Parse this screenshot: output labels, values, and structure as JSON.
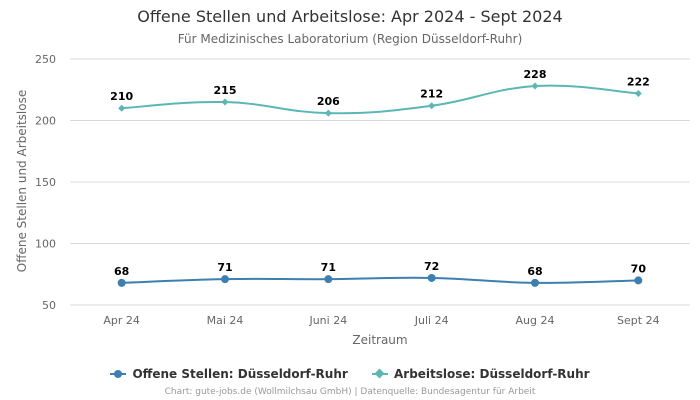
{
  "title": "Offene Stellen und Arbeitslose: Apr 2024 - Sept 2024",
  "subtitle": "Für Medizinisches Laboratorium (Region Düsseldorf-Ruhr)",
  "credits": "Chart: gute-jobs.de (Wollmilchsau GmbH) | Datenquelle: Bundesagentur für Arbeit",
  "chart_data": {
    "type": "line",
    "title": "Offene Stellen und Arbeitslose: Apr 2024 - Sept 2024",
    "subtitle": "Für Medizinisches Laboratorium (Region Düsseldorf-Ruhr)",
    "xlabel": "Zeitraum",
    "ylabel": "Offene Stellen und Arbeitslose",
    "categories": [
      "Apr 24",
      "Mai 24",
      "Juni 24",
      "Juli 24",
      "Aug 24",
      "Sept 24"
    ],
    "ylim": [
      50,
      250
    ],
    "yticks": [
      50,
      100,
      150,
      200,
      250
    ],
    "grid": true,
    "legend_position": "bottom",
    "series": [
      {
        "name": "Offene Stellen: Düsseldorf-Ruhr",
        "values": [
          68,
          71,
          71,
          72,
          68,
          70
        ],
        "color": "#3d7fb0",
        "marker": "circle"
      },
      {
        "name": "Arbeitslose: Düsseldorf-Ruhr",
        "values": [
          210,
          215,
          206,
          212,
          228,
          222
        ],
        "color": "#5ab7b4",
        "marker": "diamond"
      }
    ]
  }
}
